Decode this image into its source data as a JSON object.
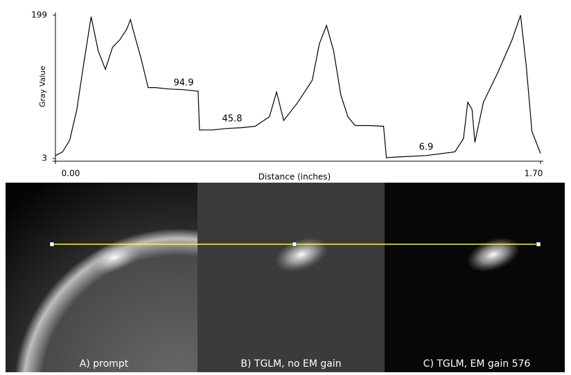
{
  "chart_data": {
    "type": "line",
    "xlabel": "Distance (inches)",
    "ylabel": "Gray Value",
    "x": [
      0,
      0.025,
      0.05,
      0.075,
      0.1,
      0.125,
      0.15,
      0.175,
      0.2,
      0.225,
      0.25,
      0.263,
      0.275,
      0.3,
      0.325,
      0.35,
      0.4,
      0.45,
      0.5,
      0.505,
      0.55,
      0.6,
      0.65,
      0.7,
      0.75,
      0.775,
      0.8,
      0.85,
      0.9,
      0.925,
      0.95,
      0.975,
      1.0,
      1.025,
      1.05,
      1.1,
      1.15,
      1.16,
      1.2,
      1.3,
      1.4,
      1.43,
      1.445,
      1.46,
      1.47,
      1.5,
      1.55,
      1.6,
      1.63,
      1.65,
      1.67,
      1.7
    ],
    "values": [
      7,
      12,
      28,
      70,
      135,
      197,
      150,
      125,
      155,
      165,
      180,
      193,
      175,
      140,
      100,
      100,
      98,
      97,
      95,
      42,
      42,
      44,
      45,
      47,
      60,
      94,
      55,
      80,
      110,
      160,
      185,
      150,
      90,
      60,
      48,
      48,
      47,
      4,
      5,
      7,
      12,
      30,
      80,
      70,
      25,
      80,
      120,
      165,
      199,
      130,
      40,
      10
    ],
    "color": "#000000",
    "xlim": [
      0,
      1.7
    ],
    "xticks": [
      {
        "value": 0,
        "label": "0.00"
      },
      {
        "value": 1.7,
        "label": "1.70"
      }
    ],
    "ylim": [
      3,
      199
    ],
    "yticks": [
      3,
      199
    ],
    "plateau_labels": [
      94.9,
      45.8,
      6.9
    ],
    "panels": [
      "A) prompt",
      "B) TGLM, no EM gain",
      "C) TGLM, EM gain 576"
    ]
  }
}
